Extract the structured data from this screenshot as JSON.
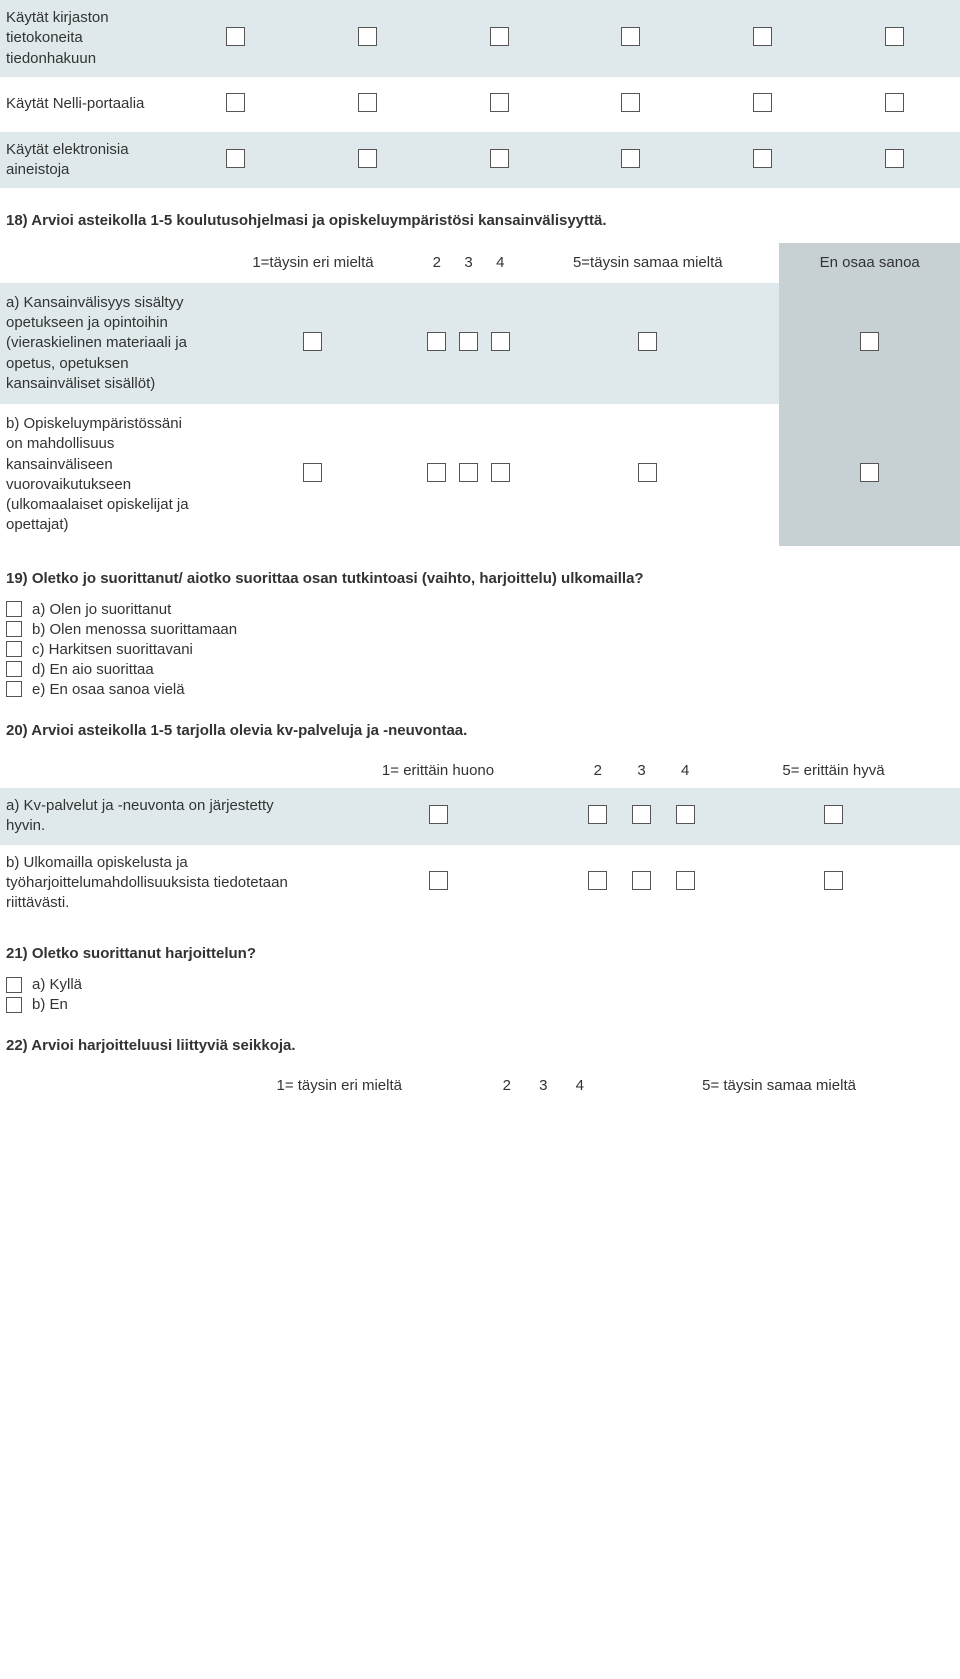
{
  "colors": {
    "row_shade": "#dfe9eb",
    "enosaa_shade": "#c7d1d3",
    "background": "#ffffff",
    "text": "#333333",
    "checkbox_border": "#555555"
  },
  "typography": {
    "font_family": "Trebuchet MS, Lucida Grande, Verdana, sans-serif",
    "base_fontsize_pt": 11,
    "bold_question_fontsize_pt": 11
  },
  "q17": {
    "rows": [
      {
        "label": "Käytät kirjaston tietokoneita tiedonhakuun",
        "shaded": true
      },
      {
        "label": "Käytät Nelli-portaalia",
        "shaded": false
      },
      {
        "label": "Käytät elektronisia aineistoja",
        "shaded": true
      }
    ],
    "num_cols": 6
  },
  "q18": {
    "question": "18) Arvioi asteikolla 1-5 koulutusohjelmasi ja opiskeluympäristösi kansainvälisyyttä.",
    "headers": {
      "h1": "1=täysin eri mieltä",
      "h2": "2",
      "h3": "3",
      "h4": "4",
      "h5": "5=täysin samaa mieltä",
      "h6": "En osaa sanoa"
    },
    "rows": [
      {
        "label": "a) Kansainvälisyys sisältyy opetukseen ja opintoihin (vieraskielinen materiaali ja opetus, opetuksen kansainväliset sisällöt)",
        "shade": "A"
      },
      {
        "label": "b) Opiskeluympäristössäni on mahdollisuus kansainväliseen vuorovaikutukseen (ulkomaalaiset opiskelijat ja opettajat)",
        "shade": "B"
      }
    ]
  },
  "q19": {
    "question": "19) Oletko jo suorittanut/ aiotko suorittaa osan tutkintoasi (vaihto, harjoittelu) ulkomailla?",
    "options": [
      "a) Olen jo suorittanut",
      "b) Olen menossa suorittamaan",
      "c) Harkitsen suorittavani",
      "d) En aio suorittaa",
      "e) En osaa sanoa vielä"
    ]
  },
  "q20": {
    "question": "20) Arvioi asteikolla 1-5 tarjolla olevia kv-palveluja ja -neuvontaa.",
    "headers": {
      "h1": "1= erittäin huono",
      "h2": "2",
      "h3": "3",
      "h4": "4",
      "h5": "5= erittäin hyvä"
    },
    "rows": [
      {
        "label": "a) Kv-palvelut ja -neuvonta on järjestetty hyvin.",
        "shaded": true
      },
      {
        "label": "b) Ulkomailla opiskelusta ja työharjoittelumahdollisuuksista tiedotetaan riittävästi.",
        "shaded": false
      }
    ]
  },
  "q21": {
    "question": "21) Oletko suorittanut harjoittelun?",
    "options": [
      "a) Kyllä",
      "b) En"
    ]
  },
  "q22": {
    "question": "22) Arvioi harjoitteluusi liittyviä seikkoja.",
    "headers": {
      "h1": "1= täysin eri mieltä",
      "h2": "2",
      "h3": "3",
      "h4": "4",
      "h5": "5= täysin samaa mieltä"
    }
  }
}
